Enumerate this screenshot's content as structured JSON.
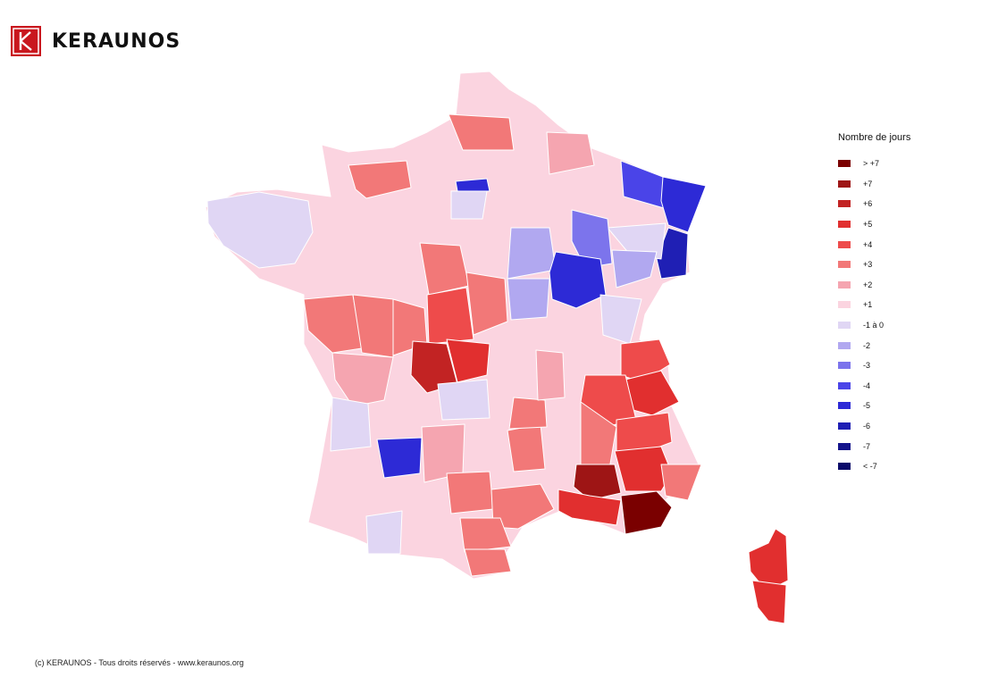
{
  "brand": {
    "name": "KERAUNOS",
    "accent": "#c9171e"
  },
  "legend": {
    "title": "Nombre de jours",
    "items": [
      {
        "label": "> +7",
        "color": "#7a0000"
      },
      {
        "label": "+7",
        "color": "#9e1515"
      },
      {
        "label": "+6",
        "color": "#c22323"
      },
      {
        "label": "+5",
        "color": "#e12f2f"
      },
      {
        "label": "+4",
        "color": "#ee4b4b"
      },
      {
        "label": "+3",
        "color": "#f27878"
      },
      {
        "label": "+2",
        "color": "#f5a5b0"
      },
      {
        "label": "+1",
        "color": "#fbd4e0"
      },
      {
        "label": "-1 à 0",
        "color": "#e0d6f4"
      },
      {
        "label": "-2",
        "color": "#b1a8f0"
      },
      {
        "label": "-3",
        "color": "#7c74ec"
      },
      {
        "label": "-4",
        "color": "#4a44e8"
      },
      {
        "label": "-5",
        "color": "#2d2ad6"
      },
      {
        "label": "-6",
        "color": "#1f1fb4"
      },
      {
        "label": "-7",
        "color": "#15158c"
      },
      {
        "label": "< -7",
        "color": "#0a0a6a"
      }
    ]
  },
  "map": {
    "fill_default": "#fbd4e0",
    "border": "#ffffff"
  },
  "footer": {
    "text": "(c) KERAUNOS - Tous droits réservés - www.keraunos.org"
  }
}
